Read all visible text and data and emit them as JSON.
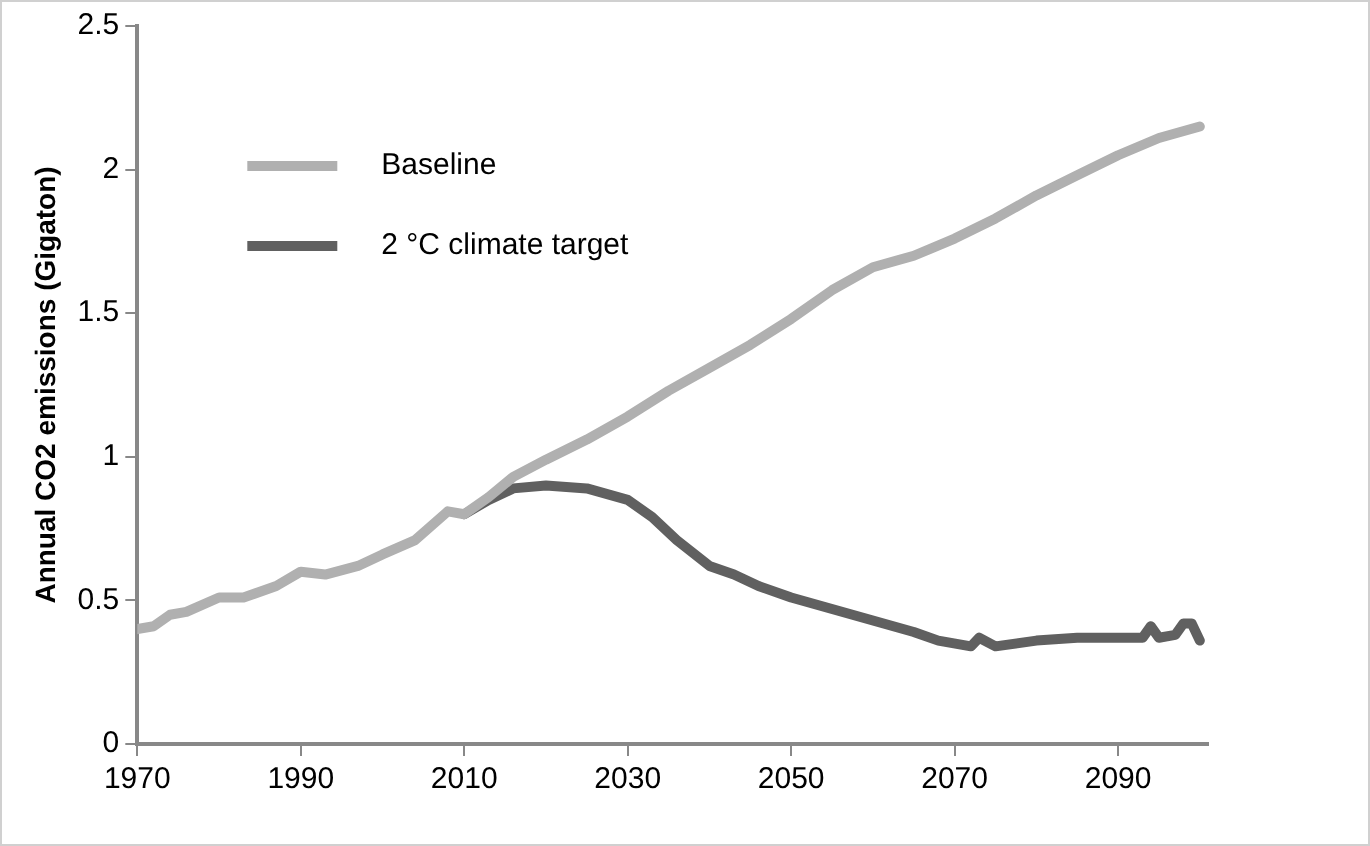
{
  "chart_data": {
    "type": "line",
    "ylabel": "Annual CO2 emissions (Gigaton)",
    "xlim": [
      1970,
      2101
    ],
    "xticks": [
      1970,
      1990,
      2010,
      2030,
      2050,
      2070,
      2090
    ],
    "ylim": [
      0,
      2.5
    ],
    "yticks": [
      0,
      0.5,
      1,
      1.5,
      2,
      2.5
    ],
    "grid": false,
    "legend": "top left",
    "marker": "none",
    "line_style": "solid",
    "series": [
      {
        "name": "Baseline",
        "color": "#b0b0b0",
        "x": [
          1970,
          1972,
          1974,
          1976,
          1980,
          1983,
          1987,
          1990,
          1993,
          1997,
          2000,
          2004,
          2008,
          2010,
          2013,
          2016,
          2020,
          2025,
          2030,
          2035,
          2040,
          2045,
          2050,
          2055,
          2060,
          2065,
          2070,
          2075,
          2080,
          2085,
          2090,
          2095,
          2100
        ],
        "values": [
          0.4,
          0.41,
          0.45,
          0.46,
          0.51,
          0.51,
          0.55,
          0.6,
          0.59,
          0.62,
          0.66,
          0.71,
          0.81,
          0.8,
          0.86,
          0.93,
          0.99,
          1.06,
          1.14,
          1.23,
          1.31,
          1.39,
          1.48,
          1.58,
          1.66,
          1.7,
          1.76,
          1.83,
          1.91,
          1.98,
          2.05,
          2.11,
          2.15
        ]
      },
      {
        "name": "2 °C climate target",
        "color": "#606060",
        "x": [
          2010,
          2013,
          2016,
          2020,
          2025,
          2030,
          2033,
          2036,
          2040,
          2043,
          2046,
          2050,
          2055,
          2060,
          2065,
          2068,
          2072,
          2073,
          2075,
          2080,
          2085,
          2090,
          2093,
          2094,
          2095,
          2097,
          2098,
          2099,
          2100
        ],
        "values": [
          0.8,
          0.85,
          0.89,
          0.9,
          0.89,
          0.85,
          0.79,
          0.71,
          0.62,
          0.59,
          0.55,
          0.51,
          0.47,
          0.43,
          0.39,
          0.36,
          0.34,
          0.37,
          0.34,
          0.36,
          0.37,
          0.37,
          0.37,
          0.41,
          0.37,
          0.38,
          0.42,
          0.42,
          0.36
        ]
      }
    ]
  }
}
